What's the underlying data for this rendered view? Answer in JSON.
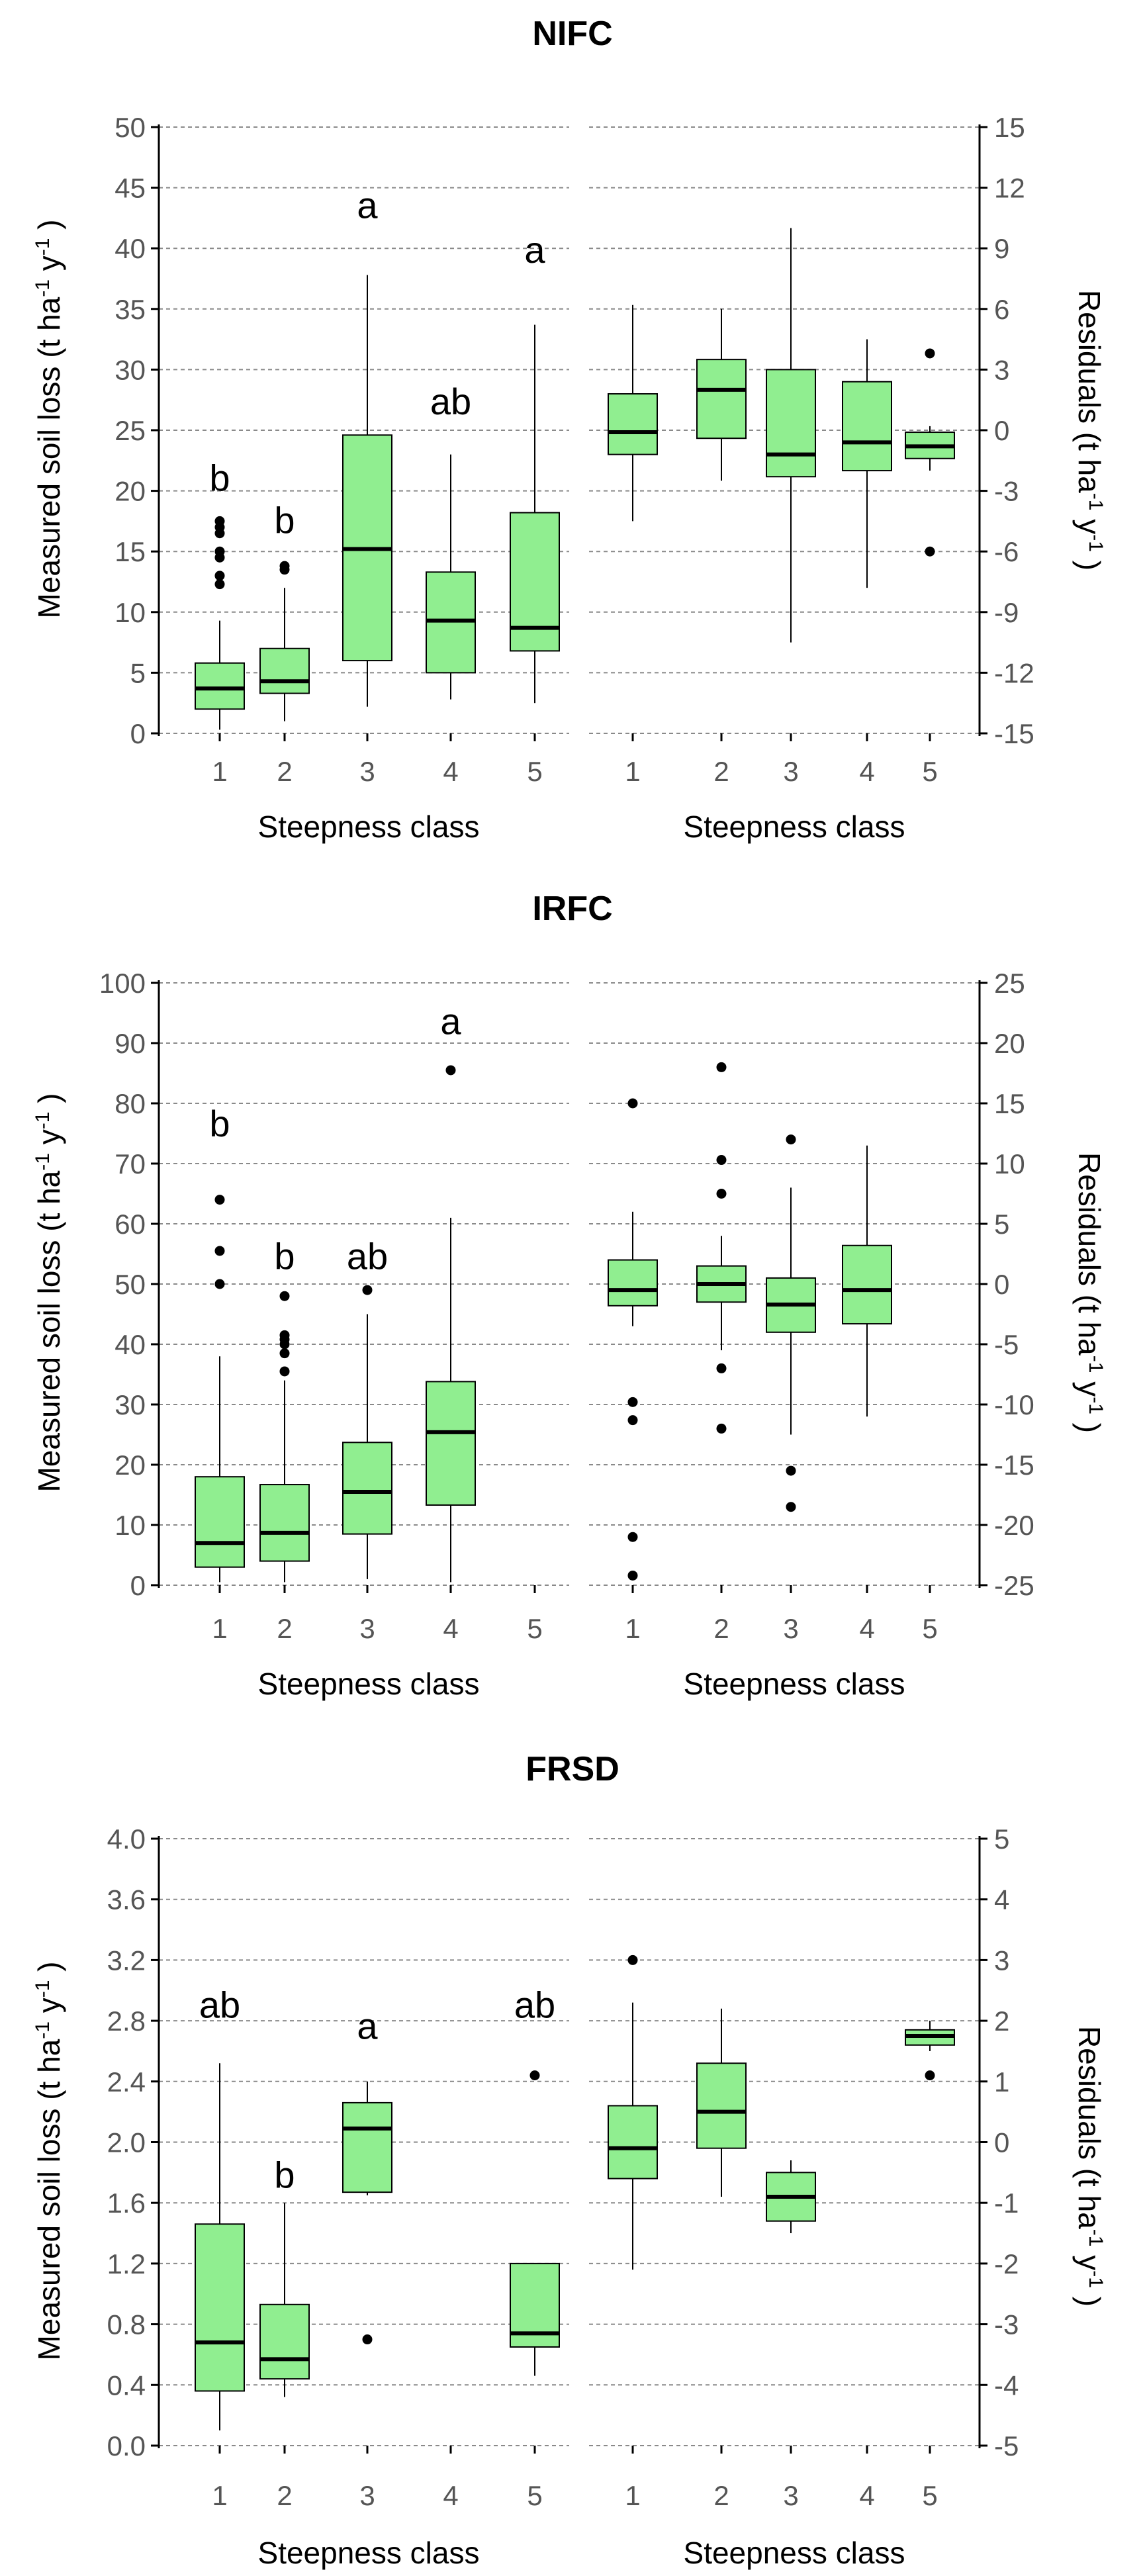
{
  "chart_data": [
    {
      "type": "boxplot",
      "title": "NIFC",
      "colors": {
        "fill": "#90EE90",
        "stroke": "#000000"
      },
      "left": {
        "ylabel": "Measured soil loss (t ha⁻¹ y⁻¹)",
        "ylabel_parts": {
          "main": "Measured soil loss (t  ha",
          "e1": "-1",
          "mid": "  y",
          "e2": "-1",
          "end": " )"
        },
        "xlabel": "Steepness class",
        "ylim": [
          0,
          50
        ],
        "yticks": [
          0,
          5,
          10,
          15,
          20,
          25,
          30,
          35,
          40,
          45,
          50
        ],
        "ytick_labels": [
          "0",
          "5",
          "10",
          "15",
          "20",
          "25",
          "30",
          "35",
          "40",
          "45",
          "50"
        ],
        "categories": [
          "1",
          "2",
          "3",
          "4",
          "5"
        ],
        "boxes": [
          {
            "category": "1",
            "whisker_low": 0.3,
            "q1": 2.0,
            "median": 3.7,
            "q3": 5.8,
            "whisker_high": 9.3,
            "outliers": [
              12.3,
              13.0,
              14.5,
              15.0,
              16.5,
              17.0,
              17.5
            ]
          },
          {
            "category": "2",
            "whisker_low": 1.0,
            "q1": 3.3,
            "median": 4.3,
            "q3": 7.0,
            "whisker_high": 12.0,
            "outliers": [
              13.5,
              13.8
            ]
          },
          {
            "category": "3",
            "whisker_low": 2.2,
            "q1": 6.0,
            "median": 15.2,
            "q3": 24.6,
            "whisker_high": 37.8,
            "outliers": []
          },
          {
            "category": "4",
            "whisker_low": 2.8,
            "q1": 5.0,
            "median": 9.3,
            "q3": 13.3,
            "whisker_high": 23.0,
            "outliers": []
          },
          {
            "category": "5",
            "whisker_low": 2.5,
            "q1": 6.8,
            "median": 8.7,
            "q3": 18.2,
            "whisker_high": 33.7,
            "outliers": []
          }
        ],
        "letters": [
          {
            "category": "1",
            "label": "b",
            "y": 20.0
          },
          {
            "category": "2",
            "label": "b",
            "y": 16.5
          },
          {
            "category": "3",
            "label": "a",
            "y": 42.5
          },
          {
            "category": "4",
            "label": "ab",
            "y": 26.3
          },
          {
            "category": "5",
            "label": "a",
            "y": 38.8
          }
        ]
      },
      "right": {
        "ylabel": "Residuals (t ha⁻¹ y⁻¹)",
        "ylabel_parts": {
          "main": "Residuals (t  ha",
          "e1": "-1",
          "mid": "  y",
          "e2": "-1",
          "end": " )"
        },
        "xlabel": "Steepness class",
        "ylim": [
          -15,
          15
        ],
        "yticks": [
          -15,
          -12,
          -9,
          -6,
          -3,
          0,
          3,
          6,
          9,
          12,
          15
        ],
        "ytick_labels": [
          "-15",
          "-12",
          "-9",
          "-6",
          "-3",
          "0",
          "3",
          "6",
          "9",
          "12",
          "15"
        ],
        "categories": [
          "1",
          "2",
          "3",
          "4",
          "5"
        ],
        "boxes": [
          {
            "category": "1",
            "whisker_low": -4.5,
            "q1": -1.2,
            "median": -0.1,
            "q3": 1.8,
            "whisker_high": 6.2,
            "outliers": []
          },
          {
            "category": "2",
            "whisker_low": -2.5,
            "q1": -0.4,
            "median": 2.0,
            "q3": 3.5,
            "whisker_high": 6.0,
            "outliers": []
          },
          {
            "category": "3",
            "whisker_low": -10.5,
            "q1": -2.3,
            "median": -1.2,
            "q3": 3.0,
            "whisker_high": 10.0,
            "outliers": []
          },
          {
            "category": "4",
            "whisker_low": -7.8,
            "q1": -2.0,
            "median": -0.6,
            "q3": 2.4,
            "whisker_high": 4.5,
            "outliers": []
          },
          {
            "category": "5",
            "whisker_low": -2.0,
            "q1": -1.4,
            "median": -0.8,
            "q3": -0.1,
            "whisker_high": 0.2,
            "outliers": [
              3.8,
              -6.0
            ]
          }
        ]
      }
    },
    {
      "type": "boxplot",
      "title": "IRFC",
      "colors": {
        "fill": "#90EE90",
        "stroke": "#000000"
      },
      "left": {
        "ylabel": "Measured soil loss (t ha⁻¹ y⁻¹)",
        "ylabel_parts": {
          "main": "Measured soil loss (t  ha",
          "e1": "-1",
          "mid": "  y",
          "e2": "-1",
          "end": " )"
        },
        "xlabel": "Steepness class",
        "ylim": [
          0,
          100
        ],
        "yticks": [
          0,
          10,
          20,
          30,
          40,
          50,
          60,
          70,
          80,
          90,
          100
        ],
        "ytick_labels": [
          "0",
          "10",
          "20",
          "30",
          "40",
          "50",
          "60",
          "70",
          "80",
          "90",
          "100"
        ],
        "categories": [
          "1",
          "2",
          "3",
          "4",
          "5"
        ],
        "boxes": [
          {
            "category": "1",
            "whisker_low": 0.5,
            "q1": 3.0,
            "median": 7.0,
            "q3": 18.0,
            "whisker_high": 38.0,
            "outliers": [
              50.0,
              55.5,
              64.0
            ]
          },
          {
            "category": "2",
            "whisker_low": 0.5,
            "q1": 4.0,
            "median": 8.7,
            "q3": 16.7,
            "whisker_high": 34.0,
            "outliers": [
              35.5,
              38.5,
              40.0,
              40.8,
              41.5,
              48.0
            ]
          },
          {
            "category": "3",
            "whisker_low": 1.0,
            "q1": 8.5,
            "median": 15.5,
            "q3": 23.7,
            "whisker_high": 45.0,
            "outliers": [
              49.0
            ]
          },
          {
            "category": "4",
            "whisker_low": 0.5,
            "q1": 13.3,
            "median": 25.4,
            "q3": 33.8,
            "whisker_high": 61.0,
            "outliers": [
              85.5
            ]
          }
        ],
        "letters": [
          {
            "category": "1",
            "label": "b",
            "y": 74.5
          },
          {
            "category": "2",
            "label": "b",
            "y": 52.5
          },
          {
            "category": "3",
            "label": "ab",
            "y": 52.5
          },
          {
            "category": "4",
            "label": "a",
            "y": 91.5
          }
        ]
      },
      "right": {
        "ylabel": "Residuals (t ha⁻¹ y⁻¹)",
        "ylabel_parts": {
          "main": "Residuals (t  ha",
          "e1": "-1",
          "mid": "  y",
          "e2": "-1",
          "end": " )"
        },
        "xlabel": "Steepness class",
        "ylim": [
          -25,
          25
        ],
        "yticks": [
          -25,
          -20,
          -15,
          -10,
          -5,
          0,
          5,
          10,
          15,
          20,
          25
        ],
        "ytick_labels": [
          "-25",
          "-20",
          "-15",
          "-10",
          "-5",
          "0",
          "5",
          "10",
          "15",
          "20",
          "25"
        ],
        "categories": [
          "1",
          "2",
          "3",
          "4",
          "5"
        ],
        "boxes": [
          {
            "category": "1",
            "whisker_low": -3.5,
            "q1": -1.8,
            "median": -0.5,
            "q3": 2.0,
            "whisker_high": 6.0,
            "outliers": [
              15.0,
              -9.8,
              -11.3,
              -21.0,
              -24.2
            ]
          },
          {
            "category": "2",
            "whisker_low": -5.5,
            "q1": -1.5,
            "median": 0.0,
            "q3": 1.5,
            "whisker_high": 4.0,
            "outliers": [
              18.0,
              10.3,
              7.5,
              -7.0,
              -12.0
            ]
          },
          {
            "category": "3",
            "whisker_low": -12.5,
            "q1": -4.0,
            "median": -1.7,
            "q3": 0.5,
            "whisker_high": 8.0,
            "outliers": [
              12.0,
              -15.5,
              -18.5
            ]
          },
          {
            "category": "4",
            "whisker_low": -11.0,
            "q1": -3.3,
            "median": -0.5,
            "q3": 3.2,
            "whisker_high": 11.5,
            "outliers": []
          }
        ]
      }
    },
    {
      "type": "boxplot",
      "title": "FRSD",
      "colors": {
        "fill": "#90EE90",
        "stroke": "#000000"
      },
      "left": {
        "ylabel": "Measured soil loss (t ha⁻¹ y⁻¹)",
        "ylabel_parts": {
          "main": "Measured soil loss (t  ha",
          "e1": "-1",
          "mid": "  y",
          "e2": "-1",
          "end": " )"
        },
        "xlabel": "Steepness class",
        "ylim": [
          0,
          4
        ],
        "yticks": [
          0,
          0.4,
          0.8,
          1.2,
          1.6,
          2.0,
          2.4,
          2.8,
          3.2,
          3.6,
          4.0
        ],
        "ytick_labels": [
          "0.0",
          "0.4",
          "0.8",
          "1.2",
          "1.6",
          "2.0",
          "2.4",
          "2.8",
          "3.2",
          "3.6",
          "4.0"
        ],
        "categories": [
          "1",
          "2",
          "3",
          "4",
          "5"
        ],
        "boxes": [
          {
            "category": "1",
            "whisker_low": 0.1,
            "q1": 0.36,
            "median": 0.68,
            "q3": 1.46,
            "whisker_high": 2.52,
            "outliers": []
          },
          {
            "category": "2",
            "whisker_low": 0.32,
            "q1": 0.44,
            "median": 0.57,
            "q3": 0.93,
            "whisker_high": 1.6,
            "outliers": []
          },
          {
            "category": "3",
            "whisker_low": 1.65,
            "q1": 1.67,
            "median": 2.09,
            "q3": 2.26,
            "whisker_high": 2.4,
            "outliers": [
              0.7
            ]
          },
          {
            "category": "5",
            "whisker_low": 0.46,
            "q1": 0.65,
            "median": 0.74,
            "q3": 1.2,
            "whisker_high": 1.2,
            "outliers": [
              2.44
            ]
          }
        ],
        "letters": [
          {
            "category": "1",
            "label": "ab",
            "y": 2.82
          },
          {
            "category": "2",
            "label": "b",
            "y": 1.7
          },
          {
            "category": "3",
            "label": "a",
            "y": 2.68
          },
          {
            "category": "5",
            "label": "ab",
            "y": 2.82
          }
        ]
      },
      "right": {
        "ylabel": "Residuals (t ha⁻¹ y⁻¹)",
        "ylabel_parts": {
          "main": "Residuals (t  ha",
          "e1": "-1",
          "mid": "  y",
          "e2": "-1",
          "end": " )"
        },
        "xlabel": "Steepness class",
        "ylim": [
          -5,
          5
        ],
        "yticks": [
          -5,
          -4,
          -3,
          -2,
          -1,
          0,
          1,
          2,
          3,
          4,
          5
        ],
        "ytick_labels": [
          "-5",
          "-4",
          "-3",
          "-2",
          "-1",
          "0",
          "1",
          "2",
          "3",
          "4",
          "5"
        ],
        "categories": [
          "1",
          "2",
          "3",
          "4",
          "5"
        ],
        "boxes": [
          {
            "category": "1",
            "whisker_low": -2.1,
            "q1": -0.6,
            "median": -0.1,
            "q3": 0.6,
            "whisker_high": 2.3,
            "outliers": [
              3.0
            ]
          },
          {
            "category": "2",
            "whisker_low": -0.9,
            "q1": -0.1,
            "median": 0.5,
            "q3": 1.3,
            "whisker_high": 2.2,
            "outliers": []
          },
          {
            "category": "3",
            "whisker_low": -1.5,
            "q1": -1.3,
            "median": -0.9,
            "q3": -0.5,
            "whisker_high": -0.3,
            "outliers": []
          },
          {
            "category": "5",
            "whisker_low": 1.5,
            "q1": 1.6,
            "median": 1.75,
            "q3": 1.85,
            "whisker_high": 2.0,
            "outliers": [
              1.1
            ]
          }
        ]
      }
    }
  ]
}
